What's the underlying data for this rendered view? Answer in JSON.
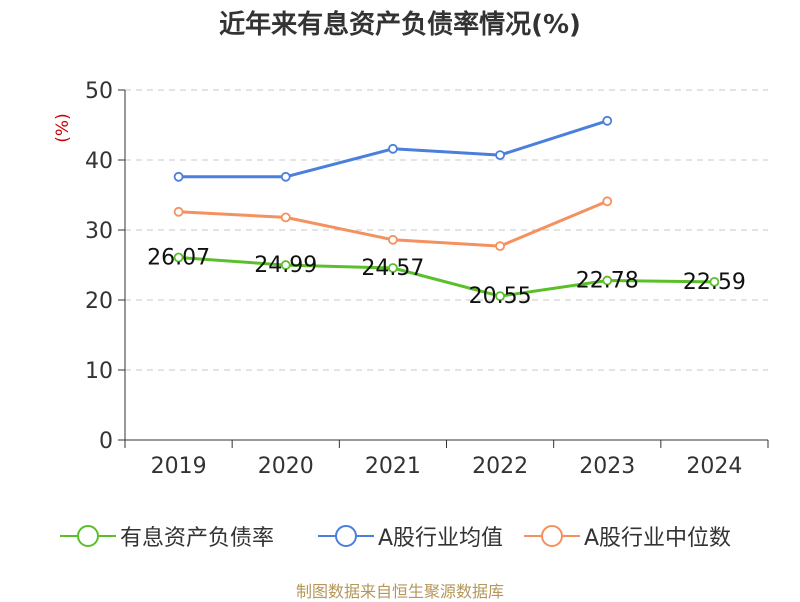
{
  "title": "近年来有息资产负债率情况(%)",
  "source": "制图数据来自恒生聚源数据库",
  "chart_data": {
    "type": "line",
    "title": "近年来有息资产负债率情况(%)",
    "ylabel": "(%)",
    "xlabel": "",
    "categories": [
      "2019",
      "2020",
      "2021",
      "2022",
      "2023",
      "2024"
    ],
    "ylim": [
      0,
      50
    ],
    "yticks": [
      0,
      10,
      20,
      30,
      40,
      50
    ],
    "grid": true,
    "legend_position": "bottom",
    "series": [
      {
        "name": "有息资产负债率",
        "color": "#5ac02a",
        "values": [
          26.07,
          24.99,
          24.57,
          20.55,
          22.78,
          22.59
        ],
        "labels": [
          "26.07",
          "24.99",
          "24.57",
          "20.55",
          "22.78",
          "22.59"
        ]
      },
      {
        "name": "A股行业均值",
        "color": "#4a7fdb",
        "values": [
          37.6,
          37.6,
          41.6,
          40.7,
          45.6,
          null
        ]
      },
      {
        "name": "A股行业中位数",
        "color": "#f5915e",
        "values": [
          32.6,
          31.8,
          28.6,
          27.7,
          34.1,
          null
        ]
      }
    ]
  }
}
